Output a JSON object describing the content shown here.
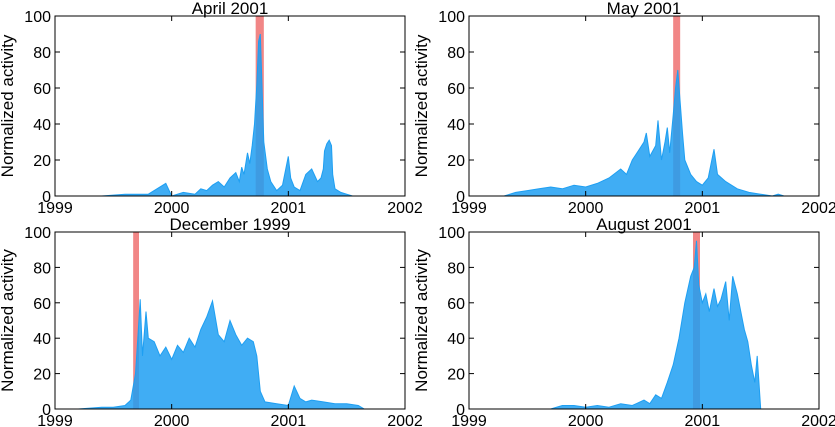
{
  "figure": {
    "panels_count": 4
  },
  "chart_data": [
    {
      "type": "area",
      "title": "April 2001",
      "ylabel": "Normalized activity",
      "xlabel": "",
      "xlim": [
        1999,
        2002
      ],
      "ylim": [
        0,
        100
      ],
      "x_ticks": [
        1999,
        2000,
        2001,
        2002
      ],
      "y_ticks": [
        0,
        20,
        40,
        60,
        80,
        100
      ],
      "grid": false,
      "series_color": "#1E9FF2",
      "highlight": {
        "start": 2000.72,
        "end": 2000.79,
        "color": "#F08080"
      },
      "series": [
        {
          "values": [
            [
              1999.4,
              0
            ],
            [
              1999.6,
              1
            ],
            [
              1999.8,
              1
            ],
            [
              1999.95,
              7
            ],
            [
              2000.0,
              0
            ],
            [
              2000.1,
              2
            ],
            [
              2000.2,
              1
            ],
            [
              2000.25,
              4
            ],
            [
              2000.3,
              3
            ],
            [
              2000.35,
              6
            ],
            [
              2000.4,
              8
            ],
            [
              2000.45,
              5
            ],
            [
              2000.5,
              10
            ],
            [
              2000.55,
              13
            ],
            [
              2000.58,
              8
            ],
            [
              2000.6,
              16
            ],
            [
              2000.62,
              12
            ],
            [
              2000.65,
              24
            ],
            [
              2000.67,
              18
            ],
            [
              2000.69,
              28
            ],
            [
              2000.71,
              40
            ],
            [
              2000.73,
              62
            ],
            [
              2000.745,
              86
            ],
            [
              2000.76,
              90
            ],
            [
              2000.77,
              70
            ],
            [
              2000.79,
              30
            ],
            [
              2000.82,
              15
            ],
            [
              2000.85,
              8
            ],
            [
              2000.9,
              3
            ],
            [
              2000.95,
              6
            ],
            [
              2001.0,
              22
            ],
            [
              2001.02,
              10
            ],
            [
              2001.05,
              5
            ],
            [
              2001.1,
              3
            ],
            [
              2001.15,
              12
            ],
            [
              2001.2,
              15
            ],
            [
              2001.25,
              8
            ],
            [
              2001.28,
              10
            ],
            [
              2001.3,
              15
            ],
            [
              2001.31,
              25
            ],
            [
              2001.33,
              29
            ],
            [
              2001.35,
              31
            ],
            [
              2001.37,
              28
            ],
            [
              2001.38,
              12
            ],
            [
              2001.4,
              4
            ],
            [
              2001.45,
              2
            ],
            [
              2001.5,
              1
            ],
            [
              2001.55,
              0
            ]
          ]
        }
      ]
    },
    {
      "type": "area",
      "title": "May 2001",
      "ylabel": "Normalized activity",
      "xlabel": "",
      "xlim": [
        1999,
        2002
      ],
      "ylim": [
        0,
        100
      ],
      "x_ticks": [
        1999,
        2000,
        2001,
        2002
      ],
      "y_ticks": [
        0,
        20,
        40,
        60,
        80,
        100
      ],
      "grid": false,
      "series_color": "#1E9FF2",
      "highlight": {
        "start": 2000.75,
        "end": 2000.81,
        "color": "#F08080"
      },
      "series": [
        {
          "values": [
            [
              1999.3,
              0
            ],
            [
              1999.4,
              2
            ],
            [
              1999.5,
              3
            ],
            [
              1999.6,
              4
            ],
            [
              1999.7,
              5
            ],
            [
              1999.8,
              4
            ],
            [
              1999.9,
              6
            ],
            [
              2000.0,
              5
            ],
            [
              2000.1,
              7
            ],
            [
              2000.2,
              10
            ],
            [
              2000.3,
              15
            ],
            [
              2000.35,
              12
            ],
            [
              2000.4,
              20
            ],
            [
              2000.45,
              25
            ],
            [
              2000.5,
              30
            ],
            [
              2000.52,
              35
            ],
            [
              2000.55,
              22
            ],
            [
              2000.6,
              28
            ],
            [
              2000.62,
              42
            ],
            [
              2000.65,
              20
            ],
            [
              2000.68,
              30
            ],
            [
              2000.7,
              38
            ],
            [
              2000.72,
              24
            ],
            [
              2000.75,
              45
            ],
            [
              2000.77,
              60
            ],
            [
              2000.79,
              70
            ],
            [
              2000.81,
              52
            ],
            [
              2000.83,
              35
            ],
            [
              2000.85,
              20
            ],
            [
              2000.9,
              12
            ],
            [
              2000.95,
              8
            ],
            [
              2001.0,
              6
            ],
            [
              2001.05,
              10
            ],
            [
              2001.1,
              26
            ],
            [
              2001.13,
              12
            ],
            [
              2001.2,
              8
            ],
            [
              2001.3,
              4
            ],
            [
              2001.4,
              2
            ],
            [
              2001.5,
              1
            ],
            [
              2001.6,
              0
            ],
            [
              2001.65,
              1
            ],
            [
              2001.7,
              0
            ]
          ]
        }
      ]
    },
    {
      "type": "area",
      "title": "December 1999",
      "ylabel": "Normalized activity",
      "xlabel": "",
      "xlim": [
        1999,
        2002
      ],
      "ylim": [
        0,
        100
      ],
      "x_ticks": [
        1999,
        2000,
        2001,
        2002
      ],
      "y_ticks": [
        0,
        20,
        40,
        60,
        80,
        100
      ],
      "grid": false,
      "series_color": "#1E9FF2",
      "highlight": {
        "start": 1999.67,
        "end": 1999.72,
        "color": "#F08080"
      },
      "series": [
        {
          "values": [
            [
              1999.2,
              0
            ],
            [
              1999.4,
              1
            ],
            [
              1999.5,
              1
            ],
            [
              1999.6,
              2
            ],
            [
              1999.65,
              5
            ],
            [
              1999.69,
              20
            ],
            [
              1999.71,
              40
            ],
            [
              1999.73,
              62
            ],
            [
              1999.75,
              30
            ],
            [
              1999.78,
              55
            ],
            [
              1999.8,
              40
            ],
            [
              1999.85,
              38
            ],
            [
              1999.9,
              30
            ],
            [
              1999.95,
              35
            ],
            [
              2000.0,
              28
            ],
            [
              2000.05,
              36
            ],
            [
              2000.1,
              32
            ],
            [
              2000.15,
              40
            ],
            [
              2000.2,
              35
            ],
            [
              2000.25,
              45
            ],
            [
              2000.3,
              52
            ],
            [
              2000.35,
              61
            ],
            [
              2000.4,
              42
            ],
            [
              2000.45,
              38
            ],
            [
              2000.5,
              50
            ],
            [
              2000.55,
              42
            ],
            [
              2000.6,
              36
            ],
            [
              2000.65,
              40
            ],
            [
              2000.7,
              38
            ],
            [
              2000.73,
              30
            ],
            [
              2000.76,
              10
            ],
            [
              2000.8,
              4
            ],
            [
              2000.9,
              3
            ],
            [
              2001.0,
              2
            ],
            [
              2001.05,
              13
            ],
            [
              2001.1,
              6
            ],
            [
              2001.15,
              4
            ],
            [
              2001.2,
              5
            ],
            [
              2001.3,
              4
            ],
            [
              2001.4,
              3
            ],
            [
              2001.5,
              3
            ],
            [
              2001.6,
              2
            ],
            [
              2001.65,
              0
            ]
          ]
        }
      ]
    },
    {
      "type": "area",
      "title": "August 2001",
      "ylabel": "Normalized activity",
      "xlabel": "",
      "xlim": [
        1999,
        2002
      ],
      "ylim": [
        0,
        100
      ],
      "x_ticks": [
        1999,
        2000,
        2001,
        2002
      ],
      "y_ticks": [
        0,
        20,
        40,
        60,
        80,
        100
      ],
      "grid": false,
      "series_color": "#1E9FF2",
      "highlight": {
        "start": 2000.92,
        "end": 2000.98,
        "color": "#F08080"
      },
      "series": [
        {
          "values": [
            [
              1999.7,
              0
            ],
            [
              1999.8,
              2
            ],
            [
              1999.9,
              2
            ],
            [
              2000.0,
              1
            ],
            [
              2000.1,
              2
            ],
            [
              2000.2,
              1
            ],
            [
              2000.3,
              3
            ],
            [
              2000.4,
              2
            ],
            [
              2000.5,
              5
            ],
            [
              2000.55,
              3
            ],
            [
              2000.6,
              8
            ],
            [
              2000.65,
              6
            ],
            [
              2000.7,
              15
            ],
            [
              2000.75,
              25
            ],
            [
              2000.8,
              40
            ],
            [
              2000.85,
              60
            ],
            [
              2000.9,
              75
            ],
            [
              2000.93,
              80
            ],
            [
              2000.95,
              95
            ],
            [
              2000.97,
              70
            ],
            [
              2001.0,
              60
            ],
            [
              2001.03,
              65
            ],
            [
              2001.06,
              55
            ],
            [
              2001.1,
              68
            ],
            [
              2001.13,
              58
            ],
            [
              2001.16,
              62
            ],
            [
              2001.2,
              72
            ],
            [
              2001.23,
              50
            ],
            [
              2001.26,
              75
            ],
            [
              2001.3,
              65
            ],
            [
              2001.33,
              55
            ],
            [
              2001.36,
              45
            ],
            [
              2001.39,
              38
            ],
            [
              2001.42,
              25
            ],
            [
              2001.45,
              15
            ],
            [
              2001.47,
              30
            ],
            [
              2001.5,
              0
            ]
          ]
        }
      ]
    }
  ]
}
